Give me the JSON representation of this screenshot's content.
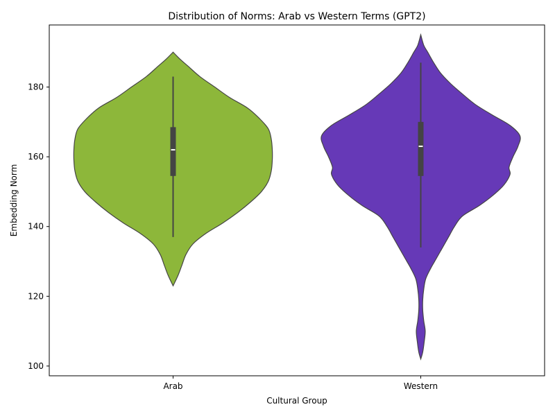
{
  "chart_data": {
    "type": "violin",
    "title": "Distribution of Norms: Arab vs Western Terms (GPT2)",
    "xlabel": "Cultural Group",
    "ylabel": "Embedding Norm",
    "categories": [
      "Arab",
      "Western"
    ],
    "ylim": [
      97.2,
      197.8
    ],
    "yticks": [
      100,
      120,
      140,
      160,
      180
    ],
    "grid": false,
    "colors": {
      "Arab": "#8db73a",
      "Western": "#6639b7",
      "edge": "#444444"
    },
    "violins": [
      {
        "name": "Arab",
        "box": {
          "q1": 154.5,
          "median": 162,
          "q3": 168.5,
          "whisker_low": 137,
          "whisker_high": 183
        },
        "profile": [
          [
            123,
            0.0
          ],
          [
            126,
            0.05
          ],
          [
            129,
            0.09
          ],
          [
            132,
            0.13
          ],
          [
            135,
            0.2
          ],
          [
            138,
            0.33
          ],
          [
            141,
            0.5
          ],
          [
            144,
            0.65
          ],
          [
            147,
            0.78
          ],
          [
            150,
            0.89
          ],
          [
            153,
            0.96
          ],
          [
            156,
            0.99
          ],
          [
            159,
            1.0
          ],
          [
            162,
            1.0
          ],
          [
            165,
            0.99
          ],
          [
            168,
            0.96
          ],
          [
            171,
            0.87
          ],
          [
            174,
            0.75
          ],
          [
            177,
            0.57
          ],
          [
            180,
            0.42
          ],
          [
            183,
            0.27
          ],
          [
            186,
            0.15
          ],
          [
            188,
            0.07
          ],
          [
            190,
            0.0
          ]
        ]
      },
      {
        "name": "Western",
        "box": {
          "q1": 154.5,
          "median": 163,
          "q3": 170,
          "whisker_low": 134,
          "whisker_high": 187
        },
        "profile": [
          [
            102,
            0.0
          ],
          [
            104,
            0.02
          ],
          [
            107,
            0.035
          ],
          [
            110,
            0.045
          ],
          [
            113,
            0.03
          ],
          [
            116,
            0.02
          ],
          [
            119,
            0.02
          ],
          [
            122,
            0.03
          ],
          [
            125,
            0.05
          ],
          [
            128,
            0.1
          ],
          [
            131,
            0.16
          ],
          [
            134,
            0.22
          ],
          [
            137,
            0.28
          ],
          [
            140,
            0.34
          ],
          [
            143,
            0.42
          ],
          [
            146,
            0.59
          ],
          [
            149,
            0.73
          ],
          [
            152,
            0.84
          ],
          [
            155,
            0.9
          ],
          [
            157,
            0.89
          ],
          [
            160,
            0.93
          ],
          [
            163,
            0.98
          ],
          [
            166,
            1.0
          ],
          [
            169,
            0.9
          ],
          [
            172,
            0.72
          ],
          [
            175,
            0.55
          ],
          [
            178,
            0.42
          ],
          [
            181,
            0.3
          ],
          [
            184,
            0.2
          ],
          [
            187,
            0.13
          ],
          [
            190,
            0.07
          ],
          [
            192,
            0.03
          ],
          [
            195,
            0.0
          ]
        ]
      }
    ]
  }
}
